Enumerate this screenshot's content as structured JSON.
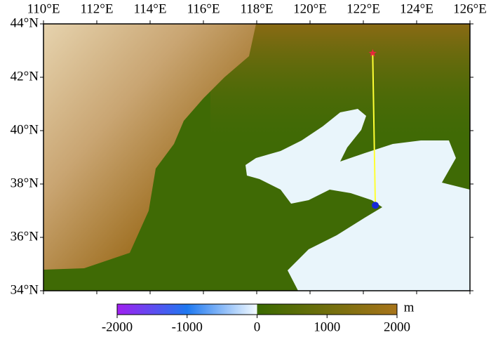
{
  "map": {
    "xlim": [
      110,
      126
    ],
    "ylim": [
      34,
      44
    ],
    "xticks": [
      {
        "value": 110,
        "label": "110°E"
      },
      {
        "value": 112,
        "label": "112°E"
      },
      {
        "value": 114,
        "label": "114°E"
      },
      {
        "value": 116,
        "label": "116°E"
      },
      {
        "value": 118,
        "label": "118°E"
      },
      {
        "value": 120,
        "label": "120°E"
      },
      {
        "value": 122,
        "label": "122°E"
      },
      {
        "value": 124,
        "label": "124°E"
      },
      {
        "value": 126,
        "label": "126°E"
      }
    ],
    "yticks": [
      {
        "value": 34,
        "label": "34°N"
      },
      {
        "value": 36,
        "label": "36°N"
      },
      {
        "value": 38,
        "label": "38°N"
      },
      {
        "value": 40,
        "label": "40°N"
      },
      {
        "value": 42,
        "label": "42°N"
      },
      {
        "value": 44,
        "label": "44°N"
      }
    ],
    "markers": [
      {
        "lon": 122.35,
        "lat": 42.9,
        "color": "#e8283c"
      },
      {
        "lon": 122.45,
        "lat": 37.2,
        "color": "#1428d8"
      }
    ],
    "path_color": "#ffff33",
    "colorbar": {
      "lim": [
        -2000,
        2000
      ],
      "ticks": [
        -2000,
        -1000,
        0,
        1000,
        2000
      ],
      "unit": "m"
    }
  }
}
